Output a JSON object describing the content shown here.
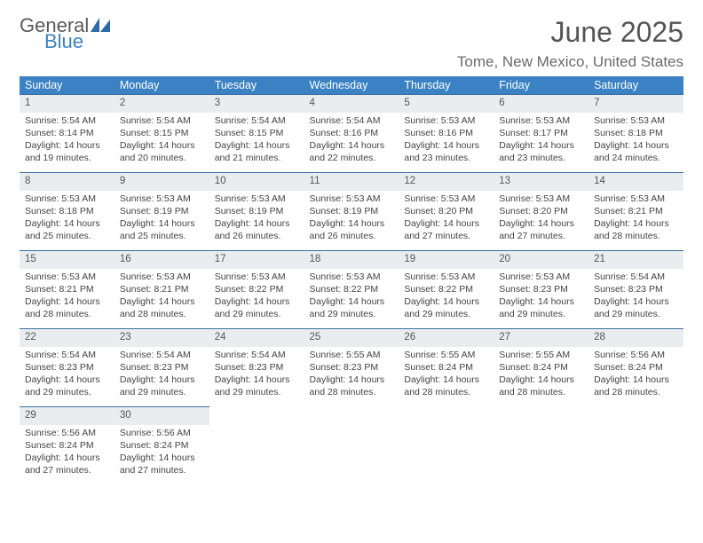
{
  "logo": {
    "text1": "General",
    "text2": "Blue"
  },
  "title": "June 2025",
  "location": "Tome, New Mexico, United States",
  "colors": {
    "header_bg": "#3b82c4",
    "header_fg": "#ffffff",
    "daynum_bg": "#e9edf0",
    "rule": "#3b6ea0"
  },
  "day_headers": [
    "Sunday",
    "Monday",
    "Tuesday",
    "Wednesday",
    "Thursday",
    "Friday",
    "Saturday"
  ],
  "weeks": [
    {
      "nums": [
        "1",
        "2",
        "3",
        "4",
        "5",
        "6",
        "7"
      ],
      "cells": [
        {
          "sunrise": "5:54 AM",
          "sunset": "8:14 PM",
          "daylight": "14 hours and 19 minutes."
        },
        {
          "sunrise": "5:54 AM",
          "sunset": "8:15 PM",
          "daylight": "14 hours and 20 minutes."
        },
        {
          "sunrise": "5:54 AM",
          "sunset": "8:15 PM",
          "daylight": "14 hours and 21 minutes."
        },
        {
          "sunrise": "5:54 AM",
          "sunset": "8:16 PM",
          "daylight": "14 hours and 22 minutes."
        },
        {
          "sunrise": "5:53 AM",
          "sunset": "8:16 PM",
          "daylight": "14 hours and 23 minutes."
        },
        {
          "sunrise": "5:53 AM",
          "sunset": "8:17 PM",
          "daylight": "14 hours and 23 minutes."
        },
        {
          "sunrise": "5:53 AM",
          "sunset": "8:18 PM",
          "daylight": "14 hours and 24 minutes."
        }
      ]
    },
    {
      "nums": [
        "8",
        "9",
        "10",
        "11",
        "12",
        "13",
        "14"
      ],
      "cells": [
        {
          "sunrise": "5:53 AM",
          "sunset": "8:18 PM",
          "daylight": "14 hours and 25 minutes."
        },
        {
          "sunrise": "5:53 AM",
          "sunset": "8:19 PM",
          "daylight": "14 hours and 25 minutes."
        },
        {
          "sunrise": "5:53 AM",
          "sunset": "8:19 PM",
          "daylight": "14 hours and 26 minutes."
        },
        {
          "sunrise": "5:53 AM",
          "sunset": "8:19 PM",
          "daylight": "14 hours and 26 minutes."
        },
        {
          "sunrise": "5:53 AM",
          "sunset": "8:20 PM",
          "daylight": "14 hours and 27 minutes."
        },
        {
          "sunrise": "5:53 AM",
          "sunset": "8:20 PM",
          "daylight": "14 hours and 27 minutes."
        },
        {
          "sunrise": "5:53 AM",
          "sunset": "8:21 PM",
          "daylight": "14 hours and 28 minutes."
        }
      ]
    },
    {
      "nums": [
        "15",
        "16",
        "17",
        "18",
        "19",
        "20",
        "21"
      ],
      "cells": [
        {
          "sunrise": "5:53 AM",
          "sunset": "8:21 PM",
          "daylight": "14 hours and 28 minutes."
        },
        {
          "sunrise": "5:53 AM",
          "sunset": "8:21 PM",
          "daylight": "14 hours and 28 minutes."
        },
        {
          "sunrise": "5:53 AM",
          "sunset": "8:22 PM",
          "daylight": "14 hours and 29 minutes."
        },
        {
          "sunrise": "5:53 AM",
          "sunset": "8:22 PM",
          "daylight": "14 hours and 29 minutes."
        },
        {
          "sunrise": "5:53 AM",
          "sunset": "8:22 PM",
          "daylight": "14 hours and 29 minutes."
        },
        {
          "sunrise": "5:53 AM",
          "sunset": "8:23 PM",
          "daylight": "14 hours and 29 minutes."
        },
        {
          "sunrise": "5:54 AM",
          "sunset": "8:23 PM",
          "daylight": "14 hours and 29 minutes."
        }
      ]
    },
    {
      "nums": [
        "22",
        "23",
        "24",
        "25",
        "26",
        "27",
        "28"
      ],
      "cells": [
        {
          "sunrise": "5:54 AM",
          "sunset": "8:23 PM",
          "daylight": "14 hours and 29 minutes."
        },
        {
          "sunrise": "5:54 AM",
          "sunset": "8:23 PM",
          "daylight": "14 hours and 29 minutes."
        },
        {
          "sunrise": "5:54 AM",
          "sunset": "8:23 PM",
          "daylight": "14 hours and 29 minutes."
        },
        {
          "sunrise": "5:55 AM",
          "sunset": "8:23 PM",
          "daylight": "14 hours and 28 minutes."
        },
        {
          "sunrise": "5:55 AM",
          "sunset": "8:24 PM",
          "daylight": "14 hours and 28 minutes."
        },
        {
          "sunrise": "5:55 AM",
          "sunset": "8:24 PM",
          "daylight": "14 hours and 28 minutes."
        },
        {
          "sunrise": "5:56 AM",
          "sunset": "8:24 PM",
          "daylight": "14 hours and 28 minutes."
        }
      ]
    },
    {
      "nums": [
        "29",
        "30",
        "",
        "",
        "",
        "",
        ""
      ],
      "cells": [
        {
          "sunrise": "5:56 AM",
          "sunset": "8:24 PM",
          "daylight": "14 hours and 27 minutes."
        },
        {
          "sunrise": "5:56 AM",
          "sunset": "8:24 PM",
          "daylight": "14 hours and 27 minutes."
        },
        null,
        null,
        null,
        null,
        null
      ]
    }
  ]
}
